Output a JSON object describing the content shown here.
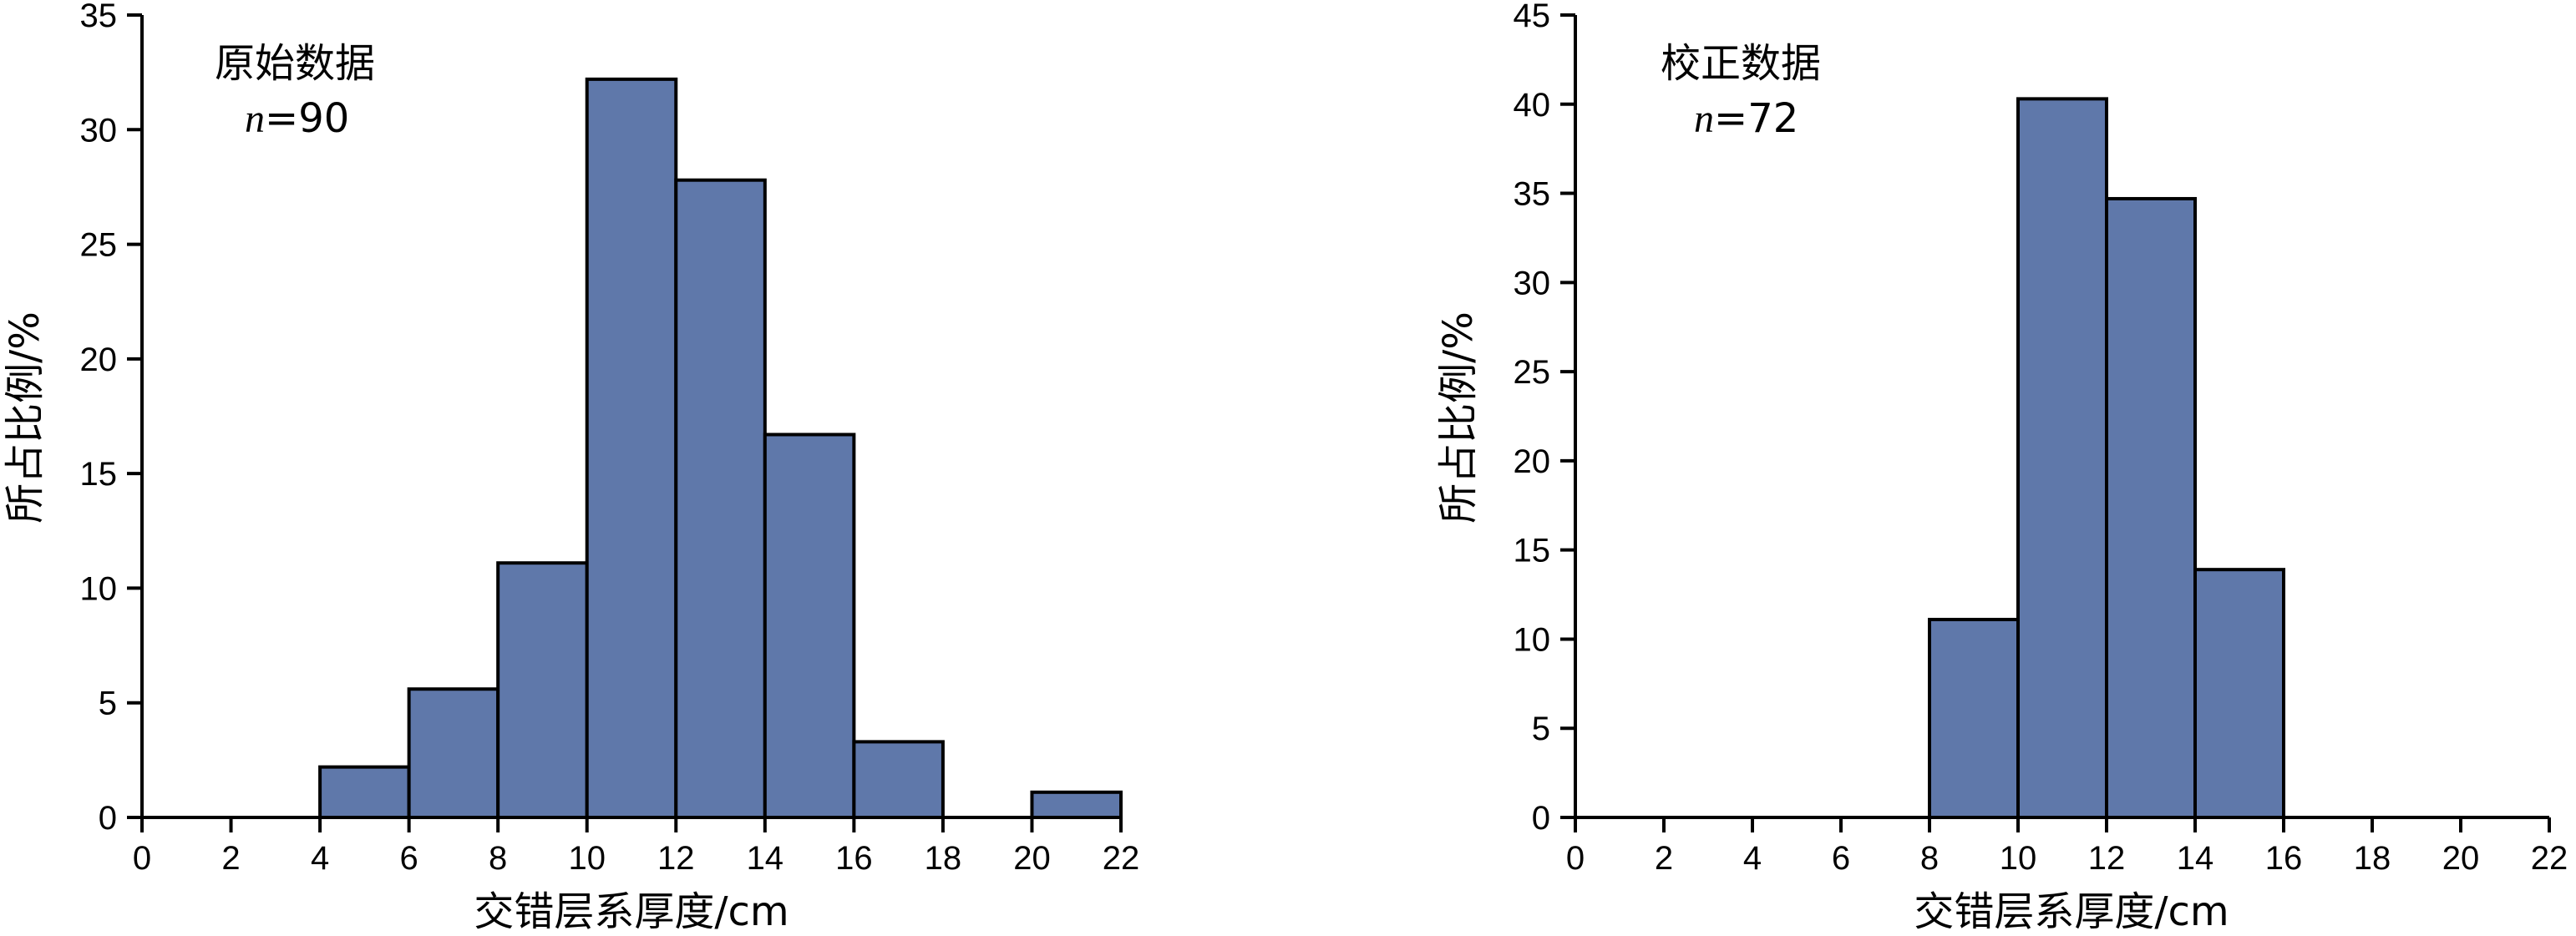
{
  "chart_data": [
    {
      "type": "bar",
      "annotation_title": "原始数据",
      "n_symbol": "n",
      "n_value": "=90",
      "xlabel": "交错层系厚度/cm",
      "ylabel": "所占比例/%",
      "xlim": [
        0,
        22
      ],
      "ylim": [
        0,
        35
      ],
      "x_ticks": [
        "0",
        "2",
        "4",
        "6",
        "8",
        "10",
        "12",
        "14",
        "16",
        "18",
        "20",
        "22"
      ],
      "y_ticks": [
        "0",
        "5",
        "10",
        "15",
        "20",
        "25",
        "30",
        "35"
      ],
      "bins": [
        [
          4,
          6
        ],
        [
          6,
          8
        ],
        [
          8,
          10
        ],
        [
          10,
          12
        ],
        [
          12,
          14
        ],
        [
          14,
          16
        ],
        [
          16,
          18
        ],
        [
          20,
          22
        ]
      ],
      "values": [
        2.2,
        5.6,
        11.1,
        32.2,
        27.8,
        16.7,
        3.3,
        1.1
      ],
      "bar_color": "#5f78aa"
    },
    {
      "type": "bar",
      "annotation_title": "校正数据",
      "n_symbol": "n",
      "n_value": "=72",
      "xlabel": "交错层系厚度/cm",
      "ylabel": "所占比例/%",
      "xlim": [
        0,
        22
      ],
      "ylim": [
        0,
        45
      ],
      "x_ticks": [
        "0",
        "2",
        "4",
        "6",
        "8",
        "10",
        "12",
        "14",
        "16",
        "18",
        "20",
        "22"
      ],
      "y_ticks": [
        "0",
        "5",
        "10",
        "15",
        "20",
        "25",
        "30",
        "35",
        "40",
        "45"
      ],
      "bins": [
        [
          8,
          10
        ],
        [
          10,
          12
        ],
        [
          12,
          14
        ],
        [
          14,
          16
        ]
      ],
      "values": [
        11.1,
        40.3,
        34.7,
        13.9
      ],
      "bar_color": "#5f78aa"
    }
  ]
}
